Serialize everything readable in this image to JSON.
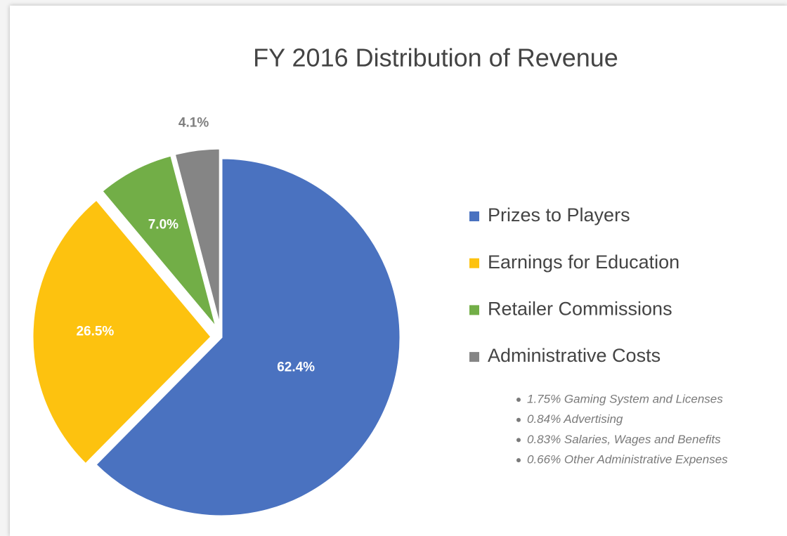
{
  "chart_data": {
    "type": "pie",
    "title": "FY 2016 Distribution of Revenue",
    "categories": [
      "Prizes to Players",
      "Earnings for Education",
      "Retailer Commissions",
      "Administrative Costs"
    ],
    "values": [
      62.4,
      26.5,
      7.0,
      4.1
    ],
    "value_labels": [
      "62.4%",
      "26.5%",
      "7.0%",
      "4.1%"
    ],
    "colors": [
      "#4a72c0",
      "#fdc20f",
      "#72ae47",
      "#858585"
    ],
    "legend": "right",
    "notes": [
      "1.75% Gaming System and Licenses",
      "0.84% Advertising",
      "0.83% Salaries, Wages and Benefits",
      "0.66% Other Administrative Expenses"
    ]
  }
}
